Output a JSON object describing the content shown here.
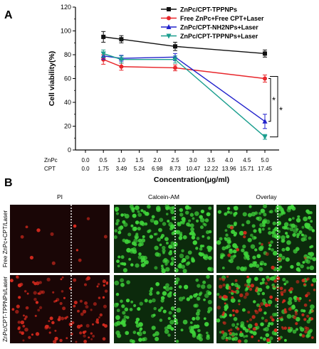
{
  "panel_a": {
    "letter": "A",
    "chart_data": {
      "type": "line",
      "ylabel": "Cell viability(%)",
      "xlabel": "Concentration(μg/ml)",
      "ylim": [
        0,
        120
      ],
      "yticks": [
        0,
        20,
        40,
        60,
        80,
        100,
        120
      ],
      "x_rows": [
        {
          "name": "ZnPc",
          "ticks": [
            "0.0",
            "0.5",
            "1.0",
            "1.5",
            "2.0",
            "2.5",
            "3.0",
            "3.5",
            "4.0",
            "4.5",
            "5.0"
          ]
        },
        {
          "name": "CPT",
          "ticks": [
            "0.0",
            "1.75",
            "3.49",
            "5.24",
            "6.98",
            "8.73",
            "10.47",
            "12.22",
            "13.96",
            "15.71",
            "17.45"
          ]
        }
      ],
      "xlim": [
        0,
        5.0
      ],
      "grid": false,
      "legend_position": "top-right",
      "series": [
        {
          "name": "ZnPc/CPT-TPPNPs",
          "color": "#111111",
          "marker": "square",
          "x": [
            0.5,
            1.0,
            2.5,
            5.0
          ],
          "y": [
            95,
            93,
            87,
            81
          ],
          "err": [
            4.5,
            3,
            3.5,
            3
          ]
        },
        {
          "name": "Free ZnPc+Free CPT+Laser",
          "color": "#e8262b",
          "marker": "circle",
          "x": [
            0.5,
            1.0,
            2.5,
            5.0
          ],
          "y": [
            76,
            70,
            69,
            60
          ],
          "err": [
            4,
            3,
            2.5,
            3
          ]
        },
        {
          "name": "ZnPc/CPT-NH2NPs+Laser",
          "color": "#2222cc",
          "marker": "triangle-up",
          "x": [
            0.5,
            1.0,
            2.5,
            5.0
          ],
          "y": [
            79,
            77,
            78,
            24
          ],
          "err": [
            3,
            2.5,
            3,
            6
          ]
        },
        {
          "name": "ZnPc/CPT-TPPNPs+Laser",
          "color": "#1a9e8e",
          "marker": "triangle-down",
          "x": [
            0.5,
            1.0,
            2.5,
            5.0
          ],
          "y": [
            81,
            76,
            76,
            11
          ],
          "err": [
            3,
            3,
            3,
            2
          ]
        }
      ],
      "annotations": [
        {
          "text": "*",
          "between": [
            1,
            2
          ]
        },
        {
          "text": "*",
          "between": [
            1,
            3
          ]
        }
      ]
    }
  },
  "panel_b": {
    "letter": "B",
    "columns": [
      "PI",
      "Calcein-AM",
      "Overlay"
    ],
    "rows": [
      "Free ZnPc+CPT/Laser",
      "ZnPc/CPT-TPPNPs/Laser"
    ],
    "colors": {
      "pi_bg": "#1a0606",
      "calcein_bg": "#0c2a0c",
      "cell_green": "#3fd43a",
      "cell_red": "#d82a1e"
    },
    "cell_density": [
      [
        {
          "red": 0.05,
          "green": 0.0
        },
        {
          "red": 0.0,
          "green": 0.85
        },
        {
          "red": 0.05,
          "green": 0.85
        }
      ],
      [
        {
          "red": 0.55,
          "green": 0.0
        },
        {
          "red": 0.0,
          "green": 0.55
        },
        {
          "red": 0.55,
          "green": 0.55
        }
      ]
    ]
  }
}
